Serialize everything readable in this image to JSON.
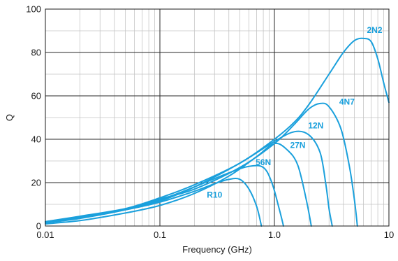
{
  "chart_data": {
    "type": "line",
    "title": "",
    "xlabel": "Frequency (GHz)",
    "ylabel": "Q",
    "x_scale": "log",
    "xlim": [
      0.01,
      10
    ],
    "ylim": [
      0,
      100
    ],
    "x_ticks": [
      {
        "value": 0.01,
        "label": "0.01"
      },
      {
        "value": 0.1,
        "label": "0.1"
      },
      {
        "value": 1,
        "label": "1.0"
      },
      {
        "value": 10,
        "label": "10"
      }
    ],
    "y_ticks": [
      {
        "value": 0,
        "label": "0"
      },
      {
        "value": 20,
        "label": "20"
      },
      {
        "value": 40,
        "label": "40"
      },
      {
        "value": 60,
        "label": "60"
      },
      {
        "value": 80,
        "label": "80"
      },
      {
        "value": 100,
        "label": "100"
      }
    ],
    "grid": true,
    "line_color": "#1aa0dc",
    "series": [
      {
        "name": "R10",
        "points": [
          [
            0.01,
            2
          ],
          [
            0.02,
            4
          ],
          [
            0.05,
            7.5
          ],
          [
            0.1,
            11
          ],
          [
            0.2,
            16
          ],
          [
            0.3,
            19.5
          ],
          [
            0.4,
            21.5
          ],
          [
            0.5,
            21.5
          ],
          [
            0.6,
            17
          ],
          [
            0.7,
            9
          ],
          [
            0.77,
            0
          ]
        ],
        "label_at": [
          0.3,
          13
        ]
      },
      {
        "name": "56N",
        "points": [
          [
            0.01,
            1.5
          ],
          [
            0.02,
            3.5
          ],
          [
            0.05,
            7.5
          ],
          [
            0.1,
            12
          ],
          [
            0.2,
            18
          ],
          [
            0.4,
            24.5
          ],
          [
            0.6,
            27.5
          ],
          [
            0.8,
            27
          ],
          [
            0.95,
            20
          ],
          [
            1.1,
            8
          ],
          [
            1.2,
            0
          ]
        ],
        "label_at": [
          0.8,
          28
        ]
      },
      {
        "name": "27N",
        "points": [
          [
            0.01,
            1
          ],
          [
            0.02,
            2.5
          ],
          [
            0.05,
            6
          ],
          [
            0.1,
            9.5
          ],
          [
            0.2,
            15
          ],
          [
            0.4,
            23
          ],
          [
            0.7,
            32
          ],
          [
            1.0,
            38
          ],
          [
            1.3,
            35
          ],
          [
            1.6,
            28
          ],
          [
            1.9,
            12
          ],
          [
            2.1,
            0
          ]
        ],
        "label_at": [
          1.6,
          36
        ]
      },
      {
        "name": "12N",
        "points": [
          [
            0.01,
            2
          ],
          [
            0.02,
            4
          ],
          [
            0.05,
            7.5
          ],
          [
            0.1,
            11.5
          ],
          [
            0.2,
            18
          ],
          [
            0.5,
            29
          ],
          [
            1.0,
            39
          ],
          [
            1.5,
            43.5
          ],
          [
            2.0,
            42
          ],
          [
            2.5,
            34
          ],
          [
            2.8,
            20
          ],
          [
            3.0,
            8
          ],
          [
            3.2,
            0
          ]
        ],
        "label_at": [
          2.3,
          45
        ]
      },
      {
        "name": "4N7",
        "points": [
          [
            0.01,
            2
          ],
          [
            0.02,
            4.5
          ],
          [
            0.05,
            8
          ],
          [
            0.1,
            12.5
          ],
          [
            0.2,
            17
          ],
          [
            0.5,
            27
          ],
          [
            1.0,
            38
          ],
          [
            1.5,
            47
          ],
          [
            2.0,
            54
          ],
          [
            2.5,
            56.5
          ],
          [
            3.0,
            55
          ],
          [
            3.8,
            45
          ],
          [
            4.5,
            28
          ],
          [
            5.0,
            12
          ],
          [
            5.3,
            0
          ]
        ],
        "label_at": [
          4.3,
          56
        ]
      },
      {
        "name": "2N2",
        "points": [
          [
            0.01,
            2
          ],
          [
            0.02,
            4
          ],
          [
            0.05,
            8
          ],
          [
            0.1,
            13
          ],
          [
            0.2,
            19
          ],
          [
            0.5,
            29
          ],
          [
            1.0,
            40
          ],
          [
            1.5,
            48
          ],
          [
            2.0,
            56
          ],
          [
            3.0,
            70
          ],
          [
            4.0,
            80
          ],
          [
            5.0,
            85.5
          ],
          [
            6.0,
            86.5
          ],
          [
            7.0,
            85
          ],
          [
            8.0,
            77
          ],
          [
            9.0,
            66
          ],
          [
            10.0,
            57
          ]
        ],
        "label_at": [
          7.5,
          89
        ]
      }
    ]
  }
}
